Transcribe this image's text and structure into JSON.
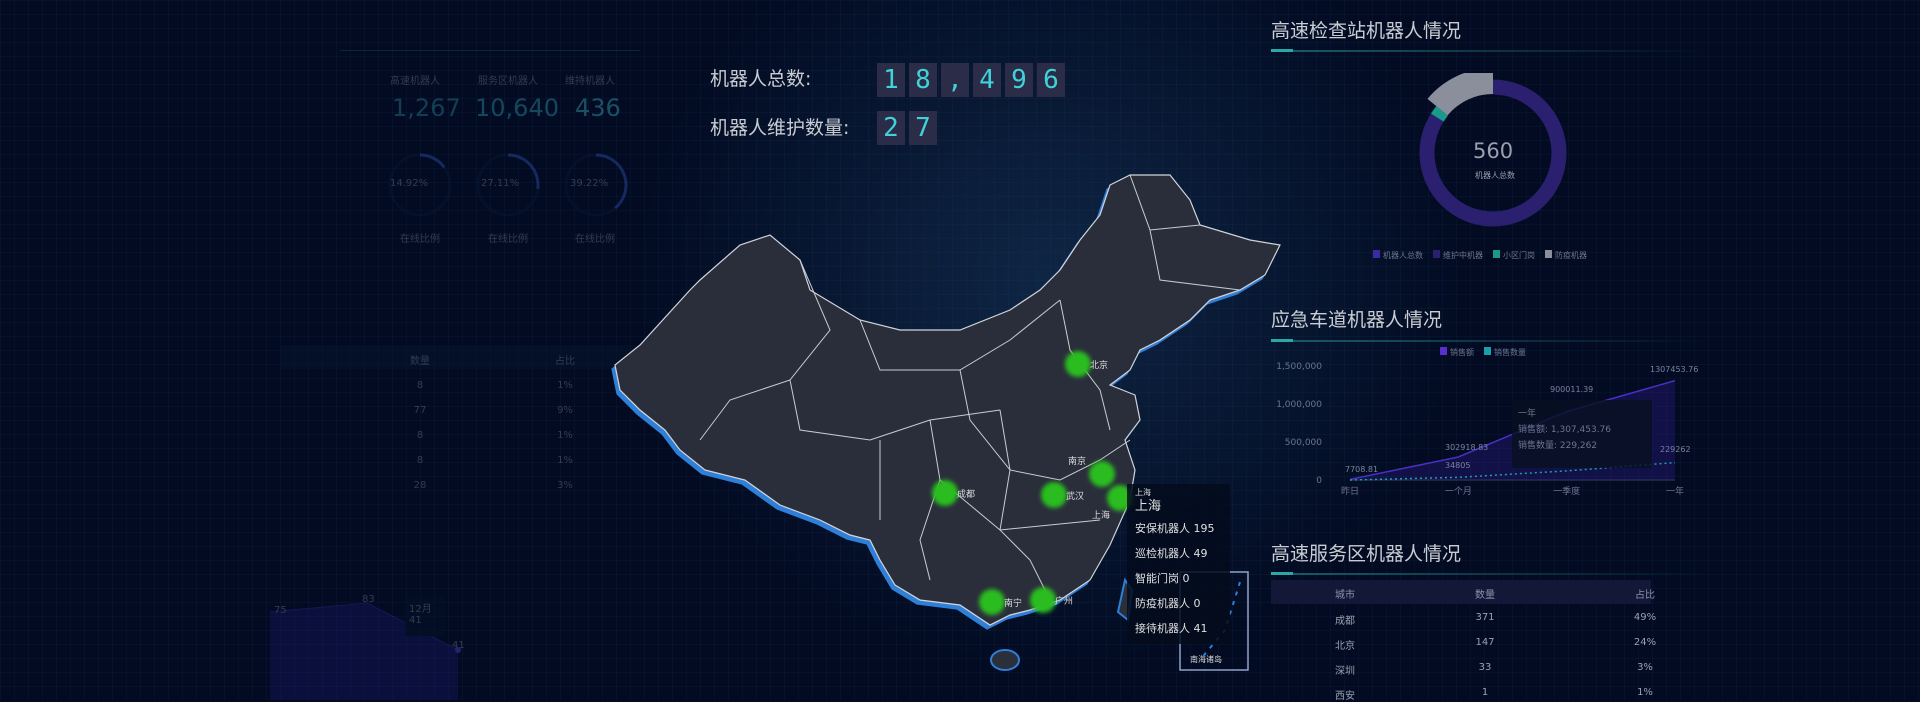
{
  "summary": {
    "total_label": "机器人总数:",
    "total_digits": [
      "1",
      "8",
      ",",
      "4",
      "9",
      "6"
    ],
    "maint_label": "机器人维护数量:",
    "maint_digits": [
      "2",
      "7"
    ]
  },
  "left_panel": {
    "stats": [
      {
        "label": "高速机器人",
        "value": "1,267"
      },
      {
        "label": "服务区机器人",
        "value": "10,640"
      },
      {
        "label": "维持机器人",
        "value": "436"
      }
    ],
    "rings": [
      {
        "percent": "14.92%",
        "fraction": 0.15
      },
      {
        "percent": "27.11%",
        "fraction": 0.27
      },
      {
        "percent": "39.22%",
        "fraction": 0.39
      }
    ],
    "ring_legend": [
      "在线比例",
      "在线比例",
      "在线比例"
    ],
    "table": {
      "headers": [
        "数量",
        "占比"
      ],
      "rows": [
        [
          "8",
          "1%"
        ],
        [
          "77",
          "9%"
        ],
        [
          "8",
          "1%"
        ],
        [
          "8",
          "1%"
        ],
        [
          "28",
          "3%"
        ]
      ]
    },
    "area_chart": {
      "labels": [
        "75",
        "83",
        "41"
      ],
      "tooltip_title": "12月",
      "tooltip_value": "41"
    }
  },
  "map": {
    "cities": [
      {
        "name": "北京"
      },
      {
        "name": "成都"
      },
      {
        "name": "武汉"
      },
      {
        "name": "南京"
      },
      {
        "name": "上海"
      },
      {
        "name": "南宁"
      },
      {
        "name": "广州"
      }
    ],
    "tooltip": {
      "title_small": "上海",
      "title": "上海",
      "rows": [
        "安保机器人 195",
        "巡检机器人 49",
        "智能门岗 0",
        "防疫机器人 0",
        "接待机器人 41"
      ]
    },
    "inset_label": "南海诸岛",
    "colors": {
      "land": "#2a2f3a",
      "border": "#d0d4da",
      "coast": "#2d7fd8",
      "marker": "#2bbd20"
    }
  },
  "checkpoint": {
    "title": "高速检查站机器人情况",
    "center_value": "560",
    "center_label": "机器人总数",
    "legend": [
      "机器人总数",
      "维护中机器",
      "小区门岗",
      "防疫机器"
    ],
    "slices": [
      {
        "value": 0.84,
        "color": "#2b2070"
      },
      {
        "value": 0.02,
        "color": "#1a9a8a"
      },
      {
        "value": 0.14,
        "color": "#8b8f9b"
      }
    ]
  },
  "emergency": {
    "title": "应急车道机器人情况",
    "legend": [
      "销售额",
      "销售数量"
    ],
    "y_ticks": [
      "1,500,000",
      "1,000,000",
      "500,000",
      "0"
    ],
    "x_ticks": [
      "昨日",
      "一个月",
      "一季度",
      "一年"
    ],
    "point_labels": [
      "7708.81",
      "302918.83",
      "34805",
      "900011.39",
      "1307453.76",
      "229262"
    ],
    "tooltip": {
      "title": "一年",
      "rows": [
        "销售额: 1,307,453.76",
        "销售数量: 229,262"
      ]
    }
  },
  "service": {
    "title": "高速服务区机器人情况",
    "headers": [
      "城市",
      "数量",
      "占比"
    ],
    "rows": [
      [
        "成都",
        "371",
        "49%"
      ],
      [
        "北京",
        "147",
        "24%"
      ],
      [
        "深圳",
        "33",
        "3%"
      ],
      [
        "西安",
        "1",
        "1%"
      ]
    ]
  }
}
